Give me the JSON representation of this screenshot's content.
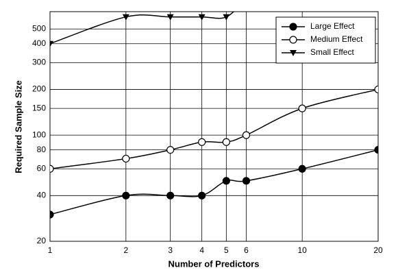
{
  "chart_data": {
    "type": "line",
    "x_label": "Number of Predictors",
    "y_label": "Required Sample Size",
    "x": [
      1,
      2,
      3,
      4,
      5,
      6,
      10,
      20
    ],
    "series": [
      {
        "name": "Large Effect",
        "color": "#000000",
        "marker": "filled-circle",
        "values": [
          30,
          40,
          40,
          40,
          50,
          50,
          60,
          80
        ]
      },
      {
        "name": "Medium Effect",
        "color": "#000000",
        "marker": "open-circle",
        "values": [
          60,
          70,
          80,
          90,
          90,
          100,
          150,
          200
        ]
      },
      {
        "name": "Small Effect",
        "color": "#000000",
        "marker": "triangle-down",
        "values": [
          400,
          600,
          600,
          600,
          600,
          800,
          null,
          null
        ]
      }
    ],
    "xlim": [
      1,
      20
    ],
    "xticks": [
      1,
      2,
      3,
      4,
      5,
      6,
      10,
      20
    ],
    "ylim": [
      20,
      650
    ],
    "yticks": [
      20,
      40,
      60,
      80,
      100,
      150,
      200,
      300,
      400,
      500
    ],
    "log_x": true,
    "log_y": true,
    "grid": true,
    "legend": "upper right"
  }
}
